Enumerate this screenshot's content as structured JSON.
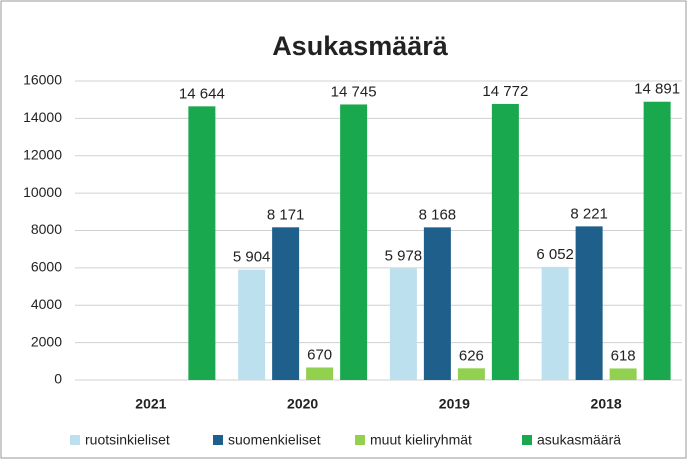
{
  "chart_data": {
    "type": "bar",
    "title": "Asukasmäärä",
    "categories": [
      "2021",
      "2020",
      "2019",
      "2018"
    ],
    "series": [
      {
        "name": "ruotsinkieliset",
        "color": "#bde0ee",
        "values": [
          null,
          5904,
          5978,
          6052
        ],
        "value_labels": [
          null,
          "5 904",
          "5 978",
          "6 052"
        ]
      },
      {
        "name": "suomenkieliset",
        "color": "#1f5f8b",
        "values": [
          null,
          8171,
          8168,
          8221
        ],
        "value_labels": [
          null,
          "8 171",
          "8 168",
          "8 221"
        ]
      },
      {
        "name": "muut kieliryhmät",
        "color": "#92d050",
        "values": [
          null,
          670,
          626,
          618
        ],
        "value_labels": [
          null,
          "670",
          "626",
          "618"
        ]
      },
      {
        "name": "asukasmäärä",
        "color": "#1aa84f",
        "values": [
          14644,
          14745,
          14772,
          14891
        ],
        "value_labels": [
          "14 644",
          "14 745",
          "14 772",
          "14 891"
        ]
      }
    ],
    "ylim": [
      0,
      16000
    ],
    "yticks": [
      0,
      2000,
      4000,
      6000,
      8000,
      10000,
      12000,
      14000,
      16000
    ],
    "grid": true,
    "legend": "bottom"
  }
}
